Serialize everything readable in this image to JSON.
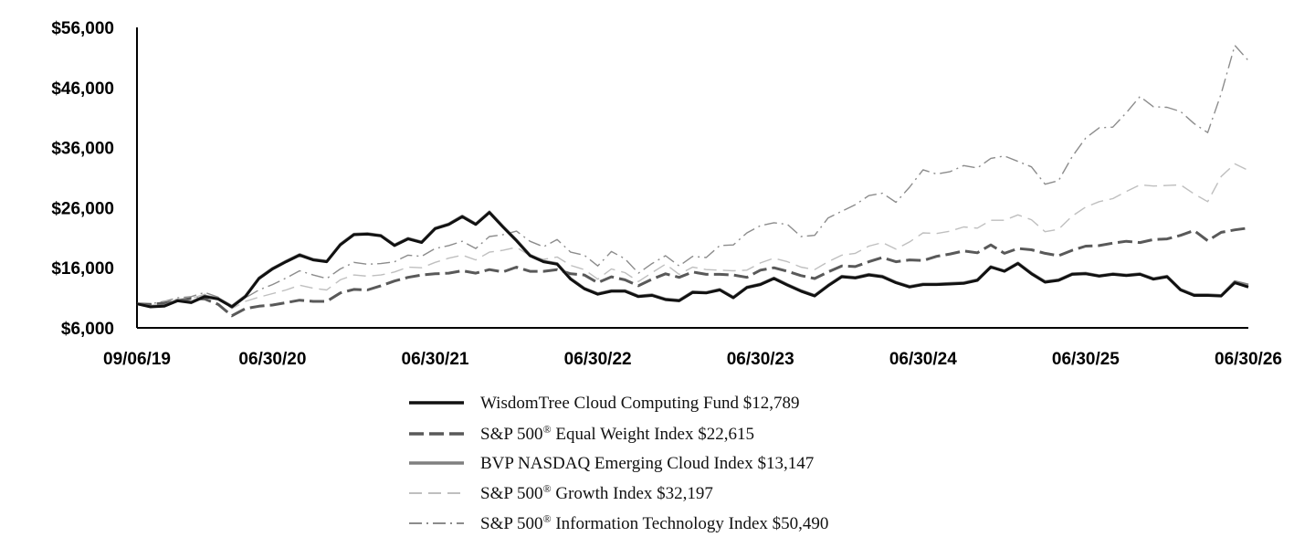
{
  "chart_data": {
    "type": "line",
    "title": "",
    "xlabel": "",
    "ylabel": "",
    "ylim": [
      6000,
      56000
    ],
    "y_ticks": [
      "$6,000",
      "$16,000",
      "$26,000",
      "$36,000",
      "$46,000",
      "$56,000"
    ],
    "y_tick_values": [
      6000,
      16000,
      26000,
      36000,
      46000,
      56000
    ],
    "x_ticks": [
      "09/06/19",
      "06/30/20",
      "06/30/21",
      "06/30/22",
      "06/30/23",
      "06/30/24",
      "06/30/25",
      "06/30/26"
    ],
    "x_tick_index": [
      0,
      10,
      22,
      34,
      46,
      58,
      70,
      82
    ],
    "x_range_index": [
      0,
      82
    ],
    "legend_position": "bottom",
    "series": [
      {
        "name": "WisdomTree Cloud Computing Fund",
        "name_suffix": "",
        "label_tail": " Cloud Computing Fund $12,789",
        "label_head": "WisdomTree",
        "end_value": "$12,789",
        "color": "#111111",
        "style": "solid-thick",
        "values": [
          10000,
          9500,
          9600,
          10500,
          10200,
          11200,
          10800,
          9500,
          11200,
          14200,
          15800,
          17000,
          18100,
          17300,
          17000,
          19800,
          21500,
          21600,
          21300,
          19700,
          20800,
          20200,
          22500,
          23200,
          24500,
          23200,
          25200,
          22800,
          20500,
          18000,
          17000,
          16600,
          14100,
          12500,
          11600,
          12100,
          12100,
          11200,
          11400,
          10700,
          10500,
          11900,
          11800,
          12300,
          11000,
          12700,
          13200,
          14200,
          13100,
          12100,
          11300,
          13000,
          14500,
          14300,
          14800,
          14500,
          13500,
          12800,
          13200,
          13200,
          13300,
          13400,
          13900,
          16100,
          15400,
          16700,
          15000,
          13600,
          13900,
          14900,
          15000,
          14600,
          14900,
          14700,
          14900,
          14100,
          14500,
          12300,
          11400,
          11400,
          11300,
          13500,
          12789
        ]
      },
      {
        "name": "S&P 500® Equal Weight Index",
        "label_head": "S&P 500",
        "label_tail": " Equal Weight Index $22,615",
        "end_value": "$22,615",
        "color": "#595959",
        "style": "dashed-thick",
        "values": [
          10000,
          9900,
          10100,
          10500,
          10900,
          10800,
          9900,
          8000,
          9200,
          9600,
          9800,
          10200,
          10600,
          10400,
          10400,
          11800,
          12400,
          12300,
          13000,
          13800,
          14400,
          14800,
          15000,
          15100,
          15500,
          15100,
          15700,
          15300,
          16100,
          15400,
          15400,
          15700,
          15000,
          14800,
          13500,
          14500,
          14000,
          13000,
          14100,
          15000,
          14400,
          15300,
          14900,
          14900,
          14800,
          14400,
          15600,
          16000,
          15400,
          14700,
          14200,
          15300,
          16300,
          16200,
          17000,
          17700,
          17000,
          17300,
          17200,
          17900,
          18300,
          18800,
          18500,
          19800,
          18400,
          19200,
          19000,
          18400,
          18000,
          18900,
          19600,
          19700,
          20100,
          20400,
          20200,
          20700,
          20800,
          21400,
          22200,
          20500,
          21900,
          22300,
          22615
        ]
      },
      {
        "name": "BVP NASDAQ Emerging Cloud Index",
        "label_head": "BVP NASDAQ Emerging Cloud Index $13,147",
        "label_tail": "",
        "end_value": "$13,147",
        "color": "#7f7f7f",
        "style": "solid-thick",
        "values": [
          10000,
          9600,
          9700,
          10600,
          10300,
          11300,
          10900,
          9600,
          11300,
          14300,
          15900,
          17100,
          18200,
          17400,
          17100,
          19900,
          21600,
          21700,
          21400,
          19800,
          20900,
          20300,
          22600,
          23300,
          24600,
          23300,
          25300,
          22900,
          20600,
          18100,
          17100,
          16700,
          14200,
          12600,
          11700,
          12200,
          12200,
          11300,
          11500,
          10800,
          10600,
          12000,
          11900,
          12400,
          11100,
          12800,
          13300,
          14300,
          13200,
          12200,
          11400,
          13100,
          14600,
          14400,
          14900,
          14600,
          13600,
          12900,
          13300,
          13300,
          13400,
          13500,
          14000,
          16200,
          15500,
          16800,
          15100,
          13700,
          14000,
          15000,
          15100,
          14700,
          15000,
          14800,
          15000,
          14200,
          14600,
          12400,
          11500,
          11500,
          11400,
          13700,
          13147
        ]
      },
      {
        "name": "S&P 500® Growth Index",
        "label_head": "S&P 500",
        "label_tail": " Growth Index $32,197",
        "end_value": "$32,197",
        "color": "#bfbfbf",
        "style": "dashed-thin",
        "values": [
          10000,
          9900,
          10300,
          10800,
          10900,
          11600,
          10900,
          9200,
          10400,
          11100,
          11700,
          12300,
          13100,
          12600,
          12300,
          14000,
          14800,
          14600,
          14800,
          15300,
          16100,
          16000,
          16900,
          17600,
          18100,
          17300,
          18600,
          18900,
          19400,
          18000,
          17400,
          17800,
          16400,
          15700,
          14100,
          15800,
          15200,
          13700,
          15200,
          16600,
          14900,
          16100,
          15700,
          15600,
          15500,
          15600,
          16800,
          17600,
          17000,
          16100,
          15700,
          17000,
          18100,
          18400,
          19600,
          20200,
          19100,
          20300,
          21800,
          21700,
          22100,
          22800,
          22600,
          23900,
          23900,
          24800,
          24000,
          22000,
          22400,
          24600,
          26100,
          27000,
          27500,
          28700,
          29800,
          29600,
          29700,
          29800,
          28300,
          27000,
          31200,
          33300,
          32197
        ]
      },
      {
        "name": "S&P 500® Information Technology Index",
        "label_head": "S&P 500",
        "label_tail": " Information Technology Index $50,490",
        "end_value": "$50,490",
        "color": "#8c8c8c",
        "style": "dashdot",
        "values": [
          10000,
          10000,
          10400,
          11000,
          11200,
          11900,
          11100,
          9400,
          11000,
          12300,
          13200,
          14300,
          15500,
          14800,
          14200,
          15800,
          16900,
          16600,
          16700,
          17000,
          18100,
          17900,
          19200,
          19700,
          20400,
          19200,
          21200,
          21500,
          22100,
          20400,
          19500,
          20700,
          18600,
          18100,
          16300,
          18700,
          17500,
          15100,
          16700,
          18000,
          16300,
          17900,
          17700,
          19700,
          19800,
          21800,
          23000,
          23500,
          23200,
          21200,
          21400,
          24300,
          25400,
          26500,
          28000,
          28400,
          26900,
          29400,
          32300,
          31600,
          32000,
          33000,
          32600,
          34200,
          34600,
          33700,
          32800,
          29900,
          30500,
          34500,
          37600,
          39300,
          39400,
          41800,
          44500,
          42800,
          42700,
          42000,
          40000,
          38500,
          45000,
          53000,
          50490
        ]
      }
    ]
  }
}
